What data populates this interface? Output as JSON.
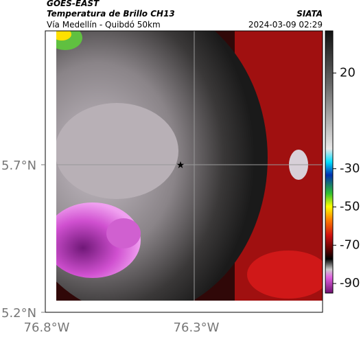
{
  "header": {
    "source": "GOES-EAST",
    "title": "Temperatura de Brillo CH13",
    "subtitle": "Vía Medellín - Quibdó 50km",
    "org": "SIATA",
    "datetime": "2024-03-09 02:29"
  },
  "map": {
    "lat_ticks": [
      "5.7°N",
      "5.2°N"
    ],
    "lon_ticks": [
      "76.8°W",
      "76.3°W"
    ]
  },
  "colorbar": {
    "lim": [
      42,
      -95
    ],
    "ticks": [
      20,
      -30,
      -50,
      -70,
      -90
    ]
  }
}
